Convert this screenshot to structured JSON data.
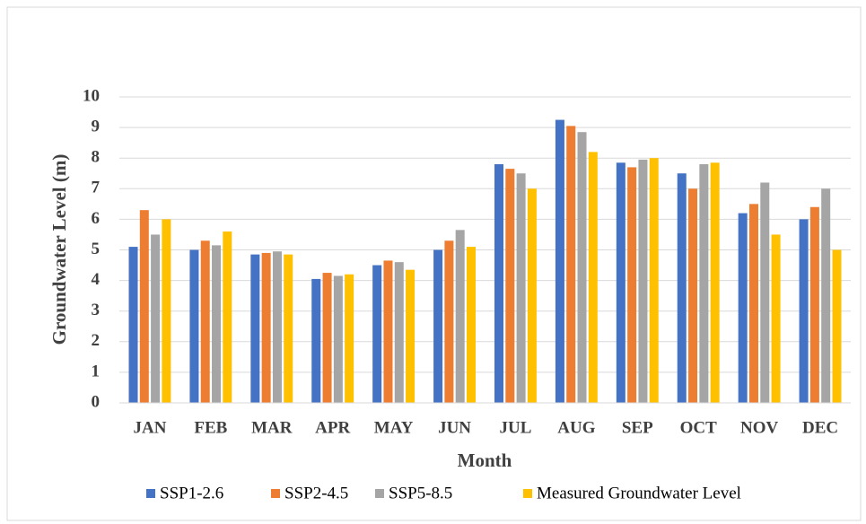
{
  "chart_data": {
    "type": "bar",
    "x_label": "Month",
    "y_label": "Groundwater Level (m)",
    "categories": [
      "JAN",
      "FEB",
      "MAR",
      "APR",
      "MAY",
      "JUN",
      "JUL",
      "AUG",
      "SEP",
      "OCT",
      "NOV",
      "DEC"
    ],
    "series": [
      {
        "name": "SSP1-2.6",
        "color": "#4472c4",
        "values": [
          5.1,
          5.0,
          4.85,
          4.05,
          4.5,
          5.0,
          7.8,
          9.25,
          7.85,
          7.5,
          6.2,
          6.0
        ]
      },
      {
        "name": "SSP2-4.5",
        "color": "#ed7d31",
        "values": [
          6.3,
          5.3,
          4.9,
          4.25,
          4.65,
          5.3,
          7.65,
          9.05,
          7.7,
          7.0,
          6.5,
          6.4
        ]
      },
      {
        "name": "SSP5-8.5",
        "color": "#a5a5a5",
        "values": [
          5.5,
          5.15,
          4.95,
          4.15,
          4.6,
          5.65,
          7.5,
          8.85,
          7.95,
          7.8,
          7.2,
          7.0
        ]
      },
      {
        "name": "Measured Groundwater Level",
        "color": "#ffc000",
        "values": [
          6.0,
          5.6,
          4.85,
          4.2,
          4.35,
          5.1,
          7.0,
          8.2,
          8.0,
          7.85,
          5.5,
          5.0
        ]
      }
    ],
    "ylim": [
      0,
      10
    ],
    "yticks": [
      0,
      1,
      2,
      3,
      4,
      5,
      6,
      7,
      8,
      9,
      10
    ],
    "grid": true,
    "legend": "bottom"
  }
}
